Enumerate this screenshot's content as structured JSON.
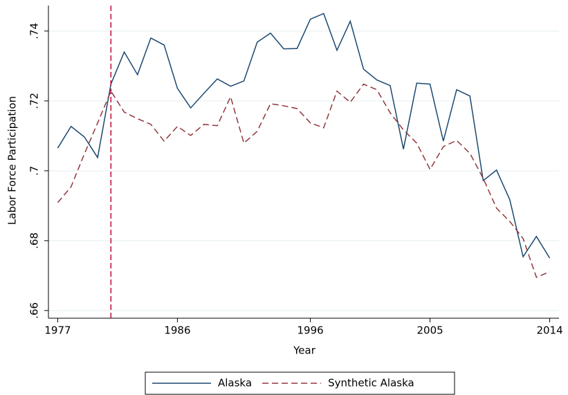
{
  "chart_data": {
    "type": "line",
    "xlabel": "Year",
    "ylabel": "Labor Force Participation",
    "x": [
      1977,
      1978,
      1979,
      1980,
      1981,
      1982,
      1983,
      1984,
      1985,
      1986,
      1987,
      1988,
      1989,
      1990,
      1991,
      1992,
      1993,
      1994,
      1995,
      1996,
      1997,
      1998,
      1999,
      2000,
      2001,
      2002,
      2003,
      2004,
      2005,
      2006,
      2007,
      2008,
      2009,
      2010,
      2011,
      2012,
      2013,
      2014
    ],
    "series": [
      {
        "name": "Alaska",
        "color": "#1a476f",
        "dash": "solid",
        "values": [
          0.7065,
          0.7127,
          0.7097,
          0.7038,
          0.7248,
          0.734,
          0.7275,
          0.738,
          0.736,
          0.7236,
          0.718,
          0.7222,
          0.7263,
          0.7242,
          0.7257,
          0.7368,
          0.7394,
          0.7349,
          0.735,
          0.7434,
          0.745,
          0.7345,
          0.7428,
          0.7291,
          0.726,
          0.7244,
          0.7062,
          0.7251,
          0.7248,
          0.7085,
          0.7232,
          0.7214,
          0.6972,
          0.7002,
          0.6917,
          0.6754,
          0.6812,
          0.675
        ]
      },
      {
        "name": "Synthetic Alaska",
        "color": "#90353b",
        "dash": "dashed",
        "values": [
          0.6909,
          0.6954,
          0.7048,
          0.7137,
          0.7228,
          0.7168,
          0.7149,
          0.7133,
          0.7085,
          0.7127,
          0.7101,
          0.7133,
          0.7129,
          0.7212,
          0.7079,
          0.7113,
          0.7192,
          0.7186,
          0.7178,
          0.7137,
          0.7123,
          0.7228,
          0.7196,
          0.7248,
          0.7232,
          0.7166,
          0.7117,
          0.7079,
          0.7004,
          0.7069,
          0.7087,
          0.705,
          0.6978,
          0.6893,
          0.6855,
          0.6806,
          0.6695,
          0.6711
        ]
      }
    ],
    "vline": {
      "x": 1981,
      "color": "#c10534"
    },
    "xlim": [
      1976.3,
      2014.7
    ],
    "xticks": [
      1977,
      1986,
      1996,
      2005,
      2014
    ],
    "ylim": [
      0.6578,
      0.7473
    ],
    "yticks": [
      {
        "value": 0.66,
        "label": ".66"
      },
      {
        "value": 0.68,
        "label": ".68"
      },
      {
        "value": 0.7,
        "label": ".7"
      },
      {
        "value": 0.72,
        "label": ".72"
      },
      {
        "value": 0.74,
        "label": ".74"
      }
    ],
    "grid": true,
    "legend": "bottom"
  }
}
